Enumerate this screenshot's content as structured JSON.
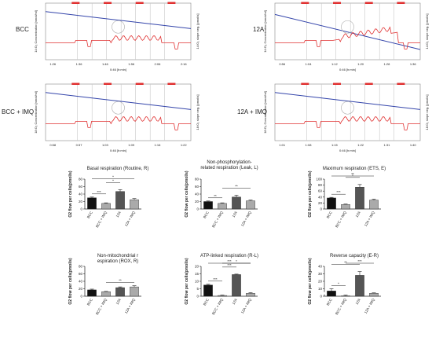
{
  "trace_panels": [
    {
      "label": "BCC",
      "ylabel_left": "14:O₂ Concentration [nmol/ml]",
      "ylabel_right": "14:O₂ slope neg. [pmol/s]",
      "xlabel": "0:46 [h:min]",
      "ticks": [
        "1:26",
        "1:36",
        "1:46",
        "1:56",
        "2:06",
        "2:16"
      ]
    },
    {
      "label": "12A",
      "ylabel_left": "14:O₂ Concentration [nmol/ml]",
      "ylabel_right": "14:O₂ slope neg. [pmol/s]",
      "xlabel": "0:46 [h:min]",
      "ticks": [
        "0:56",
        "1:04",
        "1:12",
        "1:20",
        "1:28",
        "1:36"
      ]
    },
    {
      "label": "BCC + IMQ",
      "ylabel_left": "18:O₂ Concentration [nmol/ml]",
      "ylabel_right": "18:O₂ slope neg. [pmol/s]",
      "xlabel": "0:46 [h:min]",
      "ticks": [
        "0:58",
        "0:57",
        "1:03",
        "1:09",
        "1:16",
        "1:22"
      ]
    },
    {
      "label": "12A + IMQ",
      "ylabel_left": "18:O₂ Concentration [nmol/ml]",
      "ylabel_right": "18:O₂ slope neg. [pmol/s]",
      "xlabel": "0:46 [h:min]",
      "ticks": [
        "1:01",
        "1:08",
        "1:15",
        "1:22",
        "1:31",
        "1:40"
      ]
    }
  ],
  "colors": {
    "concentration": "#3344aa",
    "slope": "#e03030",
    "bar_dark": "#111111",
    "bar_mid": "#555555",
    "bar_light": "#aaaaaa"
  },
  "chart_data": [
    {
      "type": "bar",
      "title": "Basal respiration (Routine, R)",
      "ylabel": "O2 flow per cells(pmol/s)",
      "categories": [
        "BCC",
        "BCC + IMQ",
        "12A",
        "12A + IMQ"
      ],
      "values": [
        30,
        15,
        47,
        25
      ],
      "errors": [
        2,
        1.5,
        5,
        3
      ],
      "ylim": [
        0,
        80
      ],
      "yticks": [
        0,
        20,
        40,
        60,
        80
      ],
      "significance": [
        {
          "pair": [
            0,
            1
          ],
          "label": "***"
        },
        {
          "pair": [
            1,
            2
          ],
          "label": "*"
        },
        {
          "pair": [
            0,
            3
          ],
          "label": "*"
        }
      ]
    },
    {
      "type": "bar",
      "title": "Non-phosphorylation-related respiration (Leak, L)",
      "ylabel": "O2 flow per cells(pmol/s)",
      "categories": [
        "BCC",
        "BCC + IMQ",
        "12A",
        "12A + IMQ"
      ],
      "values": [
        20,
        15,
        32,
        22
      ],
      "errors": [
        1.5,
        1.5,
        5,
        2
      ],
      "ylim": [
        0,
        80
      ],
      "yticks": [
        0,
        20,
        40,
        60,
        80
      ],
      "significance": [
        {
          "pair": [
            0,
            1
          ],
          "label": "**"
        },
        {
          "pair": [
            1,
            3
          ],
          "label": "**"
        }
      ]
    },
    {
      "type": "bar",
      "title": "Maximum respiration (ETS, E)",
      "ylabel": "O2 flow per cells(pmol/s)",
      "categories": [
        "BCC",
        "BCC + IMQ",
        "12A",
        "12A + IMQ"
      ],
      "values": [
        37,
        15,
        73,
        30
      ],
      "errors": [
        2,
        1.5,
        9,
        3
      ],
      "ylim": [
        0,
        100
      ],
      "yticks": [
        0,
        20,
        40,
        60,
        80,
        100
      ],
      "significance": [
        {
          "pair": [
            0,
            1
          ],
          "label": "***"
        },
        {
          "pair": [
            1,
            2
          ],
          "label": "*"
        },
        {
          "pair": [
            0,
            3
          ],
          "label": "**"
        }
      ]
    },
    {
      "type": "bar",
      "title": "Non-mitochondrial respiration (ROX, R)",
      "ylabel": "O2 flow per cells(pmol/s)",
      "categories": [
        "BCC",
        "BCC + IMQ",
        "12A",
        "12A + IMQ"
      ],
      "values": [
        17,
        12,
        23,
        25
      ],
      "errors": [
        2,
        1,
        2,
        3
      ],
      "ylim": [
        0,
        80
      ],
      "yticks": [
        0,
        20,
        40,
        60,
        80
      ],
      "significance": [
        {
          "pair": [
            1,
            3
          ],
          "label": "**"
        }
      ]
    },
    {
      "type": "bar",
      "title": "ATP-linked respiration (R-L)",
      "ylabel": "O2 flow per cells(pmol/s)",
      "categories": [
        "BCC",
        "BCC + IMQ",
        "12A",
        "12A + IMQ"
      ],
      "values": [
        7.5,
        0.5,
        14.5,
        2
      ],
      "errors": [
        0.5,
        0.3,
        0.3,
        0.4
      ],
      "ylim": [
        0,
        20
      ],
      "yticks": [
        0,
        5,
        10,
        15,
        20
      ],
      "significance": [
        {
          "pair": [
            0,
            1
          ],
          "label": "***"
        },
        {
          "pair": [
            1,
            2
          ],
          "label": "***"
        },
        {
          "pair": [
            0,
            3
          ],
          "label": "***"
        },
        {
          "pair": [
            1,
            3
          ],
          "label": "*"
        }
      ]
    },
    {
      "type": "bar",
      "title": "Reverse capacity (E-R)",
      "ylabel": "O2 flow per cells(pmol/s)",
      "categories": [
        "BCC",
        "BCC + IMQ",
        "12A",
        "12A + IMQ"
      ],
      "values": [
        7,
        0.5,
        28,
        4
      ],
      "errors": [
        3,
        1,
        5,
        0.5
      ],
      "ylim": [
        0,
        40
      ],
      "yticks": [
        0,
        10,
        20,
        30,
        40
      ],
      "axis_break": true,
      "significance": [
        {
          "pair": [
            0,
            1
          ],
          "label": "*"
        },
        {
          "pair": [
            0,
            2
          ],
          "label": "**"
        },
        {
          "pair": [
            1,
            3
          ],
          "label": "***"
        }
      ]
    }
  ]
}
